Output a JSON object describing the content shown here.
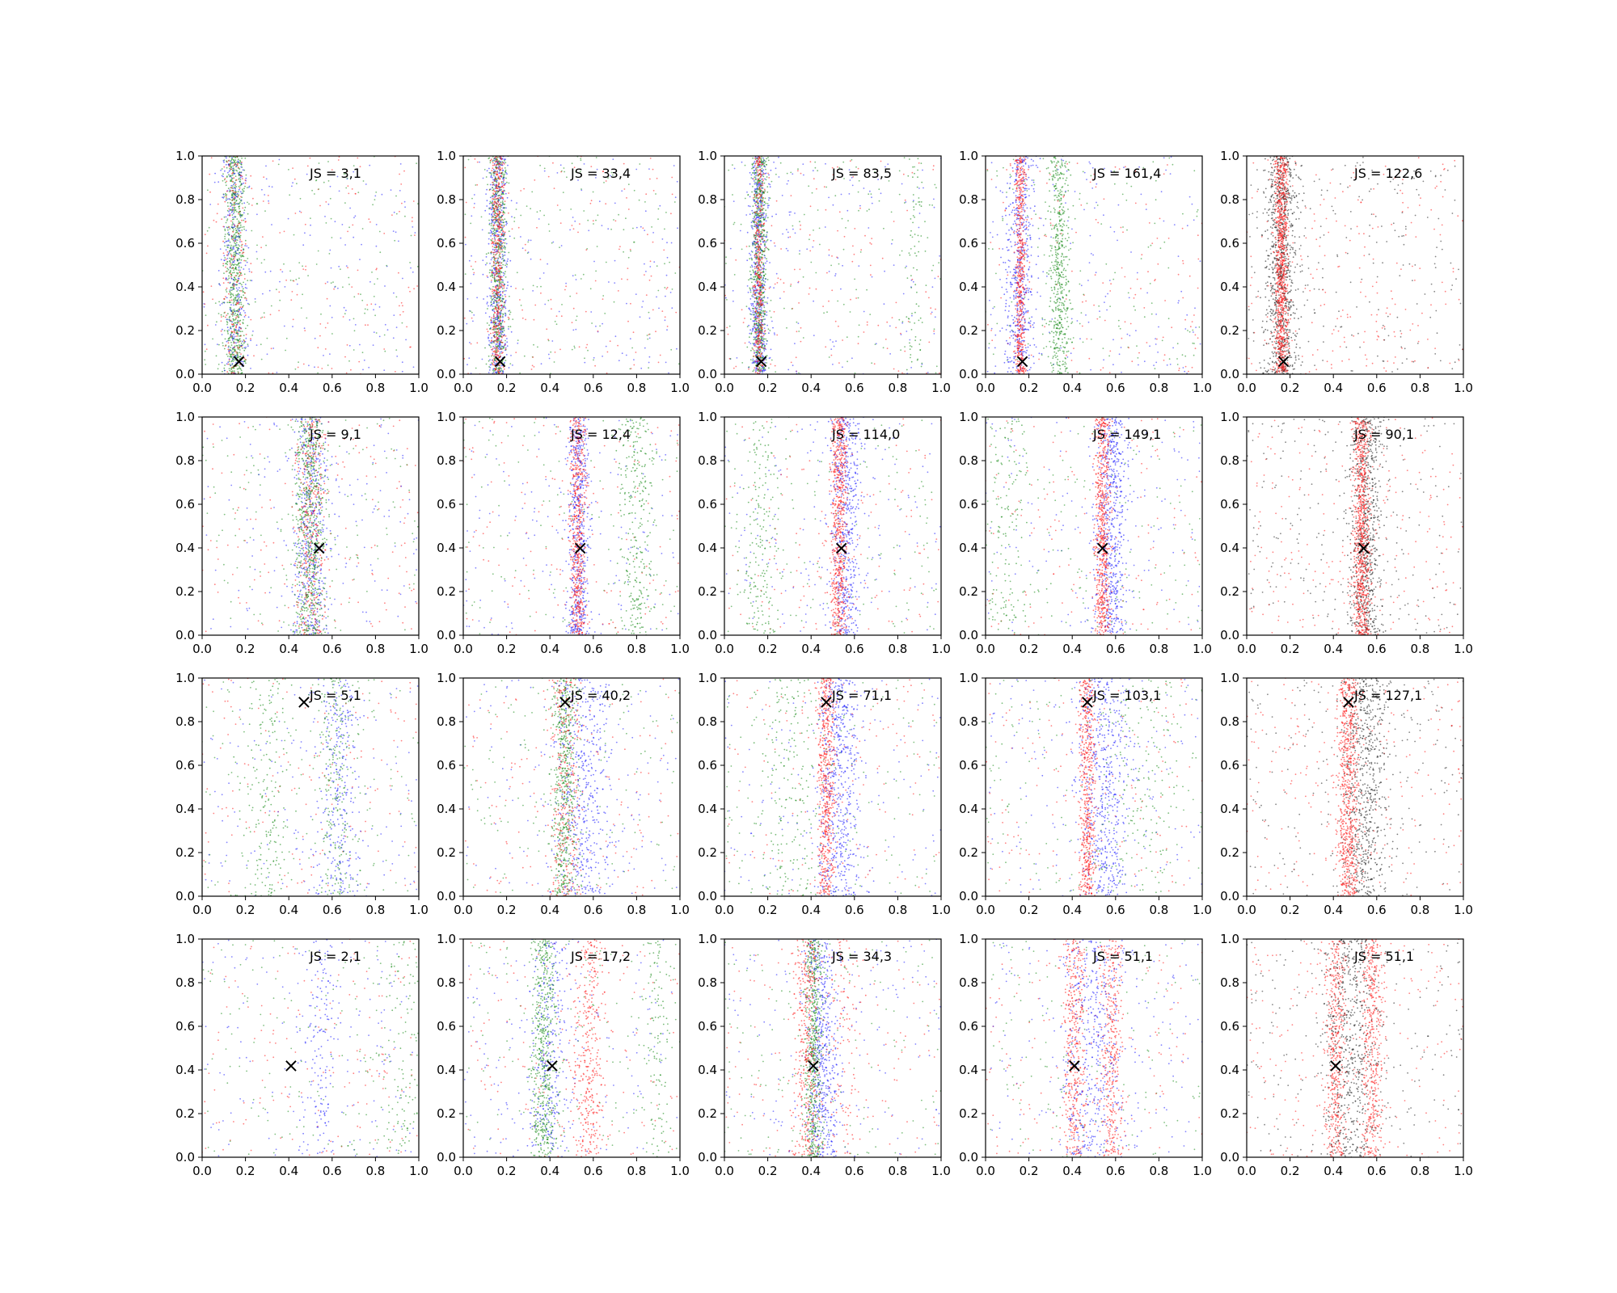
{
  "chart_data": {
    "type": "scatter",
    "layout": {
      "rows": 4,
      "cols": 5
    },
    "xlim": [
      0,
      1
    ],
    "ylim": [
      0,
      1
    ],
    "x_ticks": [
      "0.0",
      "0.2",
      "0.4",
      "0.6",
      "0.8",
      "1.0"
    ],
    "y_ticks": [
      "0.0",
      "0.2",
      "0.4",
      "0.6",
      "0.8",
      "1.0"
    ],
    "grid": false,
    "legend": "none",
    "marker_symbol": "×",
    "colors": {
      "blue": "#2020ff",
      "red": "#ff1a1a",
      "green": "#1a8c1a",
      "black": "#222222",
      "axis": "#000000"
    },
    "panels": [
      {
        "js": "JS = 3,1",
        "marker": [
          0.17,
          0.06
        ],
        "palette": [
          "blue",
          "red",
          "green"
        ],
        "clusters": [
          {
            "color": "green",
            "center": 0.15,
            "spread": 0.025,
            "share": 0.42
          },
          {
            "color": "blue",
            "center": 0.15,
            "spread": 0.03,
            "share": 0.15
          },
          {
            "color": "red",
            "center": 0.15,
            "spread": 0.03,
            "share": 0.1
          }
        ]
      },
      {
        "js": "JS = 33,4",
        "marker": [
          0.17,
          0.06
        ],
        "palette": [
          "blue",
          "red",
          "green"
        ],
        "clusters": [
          {
            "color": "blue",
            "center": 0.16,
            "spread": 0.022,
            "share": 0.3
          },
          {
            "color": "green",
            "center": 0.16,
            "spread": 0.02,
            "share": 0.32
          },
          {
            "color": "red",
            "center": 0.16,
            "spread": 0.015,
            "share": 0.25
          }
        ]
      },
      {
        "js": "JS = 83,5",
        "marker": [
          0.17,
          0.06
        ],
        "palette": [
          "blue",
          "red",
          "green"
        ],
        "clusters": [
          {
            "color": "blue",
            "center": 0.16,
            "spread": 0.02,
            "share": 0.32
          },
          {
            "color": "green",
            "center": 0.16,
            "spread": 0.018,
            "share": 0.35
          },
          {
            "color": "red",
            "center": 0.16,
            "spread": 0.012,
            "share": 0.2
          },
          {
            "color": "green",
            "center": 0.88,
            "spread": 0.02,
            "share": 0.04
          }
        ]
      },
      {
        "js": "JS = 161,4",
        "marker": [
          0.17,
          0.06
        ],
        "palette": [
          "blue",
          "red",
          "green"
        ],
        "clusters": [
          {
            "color": "blue",
            "center": 0.16,
            "spread": 0.035,
            "share": 0.3
          },
          {
            "color": "red",
            "center": 0.16,
            "spread": 0.012,
            "share": 0.3
          },
          {
            "color": "green",
            "center": 0.34,
            "spread": 0.025,
            "share": 0.28
          }
        ]
      },
      {
        "js": "JS = 122,6",
        "marker": [
          0.17,
          0.06
        ],
        "palette": [
          "black",
          "red"
        ],
        "clusters": [
          {
            "color": "black",
            "center": 0.16,
            "spread": 0.035,
            "share": 0.5
          },
          {
            "color": "red",
            "center": 0.16,
            "spread": 0.015,
            "share": 0.48
          }
        ]
      },
      {
        "js": "JS = 9,1",
        "marker": [
          0.54,
          0.4
        ],
        "palette": [
          "blue",
          "red",
          "green"
        ],
        "clusters": [
          {
            "color": "blue",
            "center": 0.5,
            "spread": 0.04,
            "share": 0.25
          },
          {
            "color": "red",
            "center": 0.5,
            "spread": 0.035,
            "share": 0.2
          },
          {
            "color": "green",
            "center": 0.5,
            "spread": 0.035,
            "share": 0.35
          }
        ]
      },
      {
        "js": "JS = 12,4",
        "marker": [
          0.54,
          0.4
        ],
        "palette": [
          "blue",
          "red",
          "green"
        ],
        "clusters": [
          {
            "color": "blue",
            "center": 0.53,
            "spread": 0.025,
            "share": 0.3
          },
          {
            "color": "red",
            "center": 0.53,
            "spread": 0.018,
            "share": 0.3
          },
          {
            "color": "green",
            "center": 0.8,
            "spread": 0.04,
            "share": 0.15
          }
        ]
      },
      {
        "js": "JS = 114,0",
        "marker": [
          0.54,
          0.4
        ],
        "palette": [
          "blue",
          "red",
          "green"
        ],
        "clusters": [
          {
            "color": "blue",
            "center": 0.56,
            "spread": 0.035,
            "share": 0.3
          },
          {
            "color": "red",
            "center": 0.53,
            "spread": 0.018,
            "share": 0.35
          },
          {
            "color": "green",
            "center": 0.17,
            "spread": 0.05,
            "share": 0.1
          }
        ]
      },
      {
        "js": "JS = 149,1",
        "marker": [
          0.54,
          0.4
        ],
        "palette": [
          "blue",
          "red",
          "green"
        ],
        "clusters": [
          {
            "color": "blue",
            "center": 0.58,
            "spread": 0.035,
            "share": 0.32
          },
          {
            "color": "red",
            "center": 0.54,
            "spread": 0.018,
            "share": 0.35
          },
          {
            "color": "green",
            "center": 0.1,
            "spread": 0.06,
            "share": 0.08
          }
        ]
      },
      {
        "js": "JS = 90,1",
        "marker": [
          0.54,
          0.4
        ],
        "palette": [
          "black",
          "red"
        ],
        "clusters": [
          {
            "color": "black",
            "center": 0.55,
            "spread": 0.04,
            "share": 0.4
          },
          {
            "color": "red",
            "center": 0.53,
            "spread": 0.02,
            "share": 0.45
          }
        ]
      },
      {
        "js": "JS = 5,1",
        "marker": [
          0.47,
          0.89
        ],
        "palette": [
          "blue",
          "red",
          "green"
        ],
        "clusters": [
          {
            "color": "blue",
            "center": 0.63,
            "spread": 0.05,
            "share": 0.15
          },
          {
            "color": "green",
            "center": 0.62,
            "spread": 0.04,
            "share": 0.12
          },
          {
            "color": "green",
            "center": 0.3,
            "spread": 0.06,
            "share": 0.1
          }
        ]
      },
      {
        "js": "JS = 40,2",
        "marker": [
          0.47,
          0.89
        ],
        "palette": [
          "blue",
          "red",
          "green"
        ],
        "clusters": [
          {
            "color": "blue",
            "center": 0.55,
            "spread": 0.06,
            "share": 0.25
          },
          {
            "color": "green",
            "center": 0.47,
            "spread": 0.03,
            "share": 0.3
          },
          {
            "color": "red",
            "center": 0.47,
            "spread": 0.035,
            "share": 0.15
          }
        ]
      },
      {
        "js": "JS = 71,1",
        "marker": [
          0.47,
          0.89
        ],
        "palette": [
          "blue",
          "red",
          "green"
        ],
        "clusters": [
          {
            "color": "blue",
            "center": 0.53,
            "spread": 0.05,
            "share": 0.3
          },
          {
            "color": "red",
            "center": 0.47,
            "spread": 0.018,
            "share": 0.3
          },
          {
            "color": "green",
            "center": 0.3,
            "spread": 0.08,
            "share": 0.1
          }
        ]
      },
      {
        "js": "JS = 103,1",
        "marker": [
          0.47,
          0.89
        ],
        "palette": [
          "blue",
          "red",
          "green"
        ],
        "clusters": [
          {
            "color": "blue",
            "center": 0.55,
            "spread": 0.06,
            "share": 0.3
          },
          {
            "color": "red",
            "center": 0.47,
            "spread": 0.018,
            "share": 0.3
          },
          {
            "color": "green",
            "center": 0.7,
            "spread": 0.1,
            "share": 0.08
          }
        ]
      },
      {
        "js": "JS = 127,1",
        "marker": [
          0.47,
          0.89
        ],
        "palette": [
          "black",
          "red"
        ],
        "clusters": [
          {
            "color": "black",
            "center": 0.55,
            "spread": 0.05,
            "share": 0.35
          },
          {
            "color": "red",
            "center": 0.47,
            "spread": 0.025,
            "share": 0.4
          }
        ]
      },
      {
        "js": "JS = 2,1",
        "marker": [
          0.41,
          0.42
        ],
        "palette": [
          "blue",
          "red",
          "green"
        ],
        "clusters": [
          {
            "color": "blue",
            "center": 0.55,
            "spread": 0.04,
            "share": 0.08
          },
          {
            "color": "green",
            "center": 0.9,
            "spread": 0.06,
            "share": 0.06
          }
        ]
      },
      {
        "js": "JS = 17,2",
        "marker": [
          0.41,
          0.42
        ],
        "palette": [
          "blue",
          "red",
          "green"
        ],
        "clusters": [
          {
            "color": "green",
            "center": 0.37,
            "spread": 0.03,
            "share": 0.3
          },
          {
            "color": "red",
            "center": 0.58,
            "spread": 0.035,
            "share": 0.2
          },
          {
            "color": "blue",
            "center": 0.4,
            "spread": 0.05,
            "share": 0.15
          },
          {
            "color": "green",
            "center": 0.9,
            "spread": 0.03,
            "share": 0.06
          }
        ]
      },
      {
        "js": "JS = 34,3",
        "marker": [
          0.41,
          0.42
        ],
        "palette": [
          "blue",
          "red",
          "green"
        ],
        "clusters": [
          {
            "color": "blue",
            "center": 0.45,
            "spread": 0.04,
            "share": 0.3
          },
          {
            "color": "green",
            "center": 0.41,
            "spread": 0.022,
            "share": 0.3
          },
          {
            "color": "red",
            "center": 0.38,
            "spread": 0.03,
            "share": 0.2
          },
          {
            "color": "red",
            "center": 0.55,
            "spread": 0.04,
            "share": 0.06
          }
        ]
      },
      {
        "js": "JS = 51,1",
        "marker": [
          0.41,
          0.42
        ],
        "palette": [
          "blue",
          "red",
          "green"
        ],
        "clusters": [
          {
            "color": "red",
            "center": 0.41,
            "spread": 0.025,
            "share": 0.22
          },
          {
            "color": "red",
            "center": 0.58,
            "spread": 0.025,
            "share": 0.2
          },
          {
            "color": "blue",
            "center": 0.5,
            "spread": 0.08,
            "share": 0.25
          }
        ]
      },
      {
        "js": "JS = 51,1",
        "marker": [
          0.41,
          0.42
        ],
        "palette": [
          "black",
          "red"
        ],
        "clusters": [
          {
            "color": "red",
            "center": 0.41,
            "spread": 0.025,
            "share": 0.25
          },
          {
            "color": "red",
            "center": 0.58,
            "spread": 0.025,
            "share": 0.25
          },
          {
            "color": "black",
            "center": 0.48,
            "spread": 0.06,
            "share": 0.3
          }
        ]
      }
    ]
  }
}
